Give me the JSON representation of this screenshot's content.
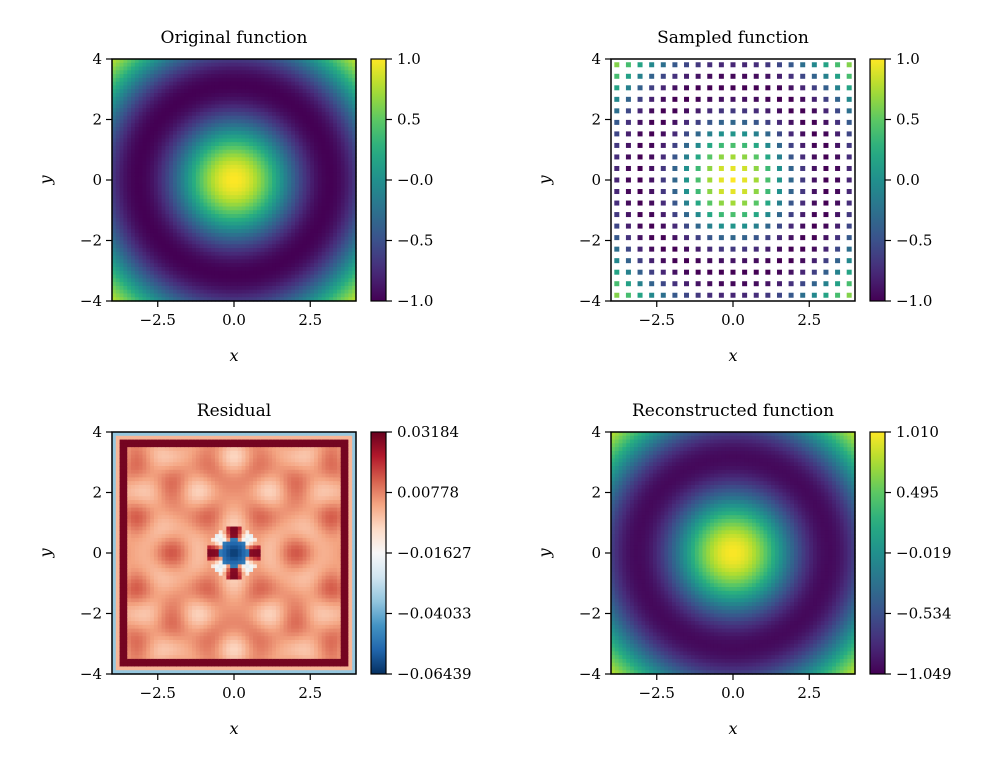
{
  "figure": {
    "panels": [
      {
        "id": "original",
        "title": "Original function",
        "xlabel": "x",
        "ylabel": "y",
        "colormap": "viridis",
        "kind": "smooth"
      },
      {
        "id": "sampled",
        "title": "Sampled function",
        "xlabel": "x",
        "ylabel": "y",
        "colormap": "viridis",
        "kind": "sampled"
      },
      {
        "id": "residual",
        "title": "Residual",
        "xlabel": "x",
        "ylabel": "y",
        "colormap": "RdBu_r",
        "kind": "residual"
      },
      {
        "id": "reconstructed",
        "title": "Reconstructed function",
        "xlabel": "x",
        "ylabel": "y",
        "colormap": "viridis",
        "kind": "smooth"
      }
    ]
  },
  "chart_data": [
    {
      "type": "heatmap",
      "title": "Original function",
      "xlabel": "x",
      "ylabel": "y",
      "xlim": [
        -4,
        4
      ],
      "ylim": [
        -4,
        4
      ],
      "xticks": [
        "−2.5",
        "0.0",
        "2.5"
      ],
      "xtick_values": [
        -2.5,
        0.0,
        2.5
      ],
      "yticks": [
        "−4",
        "−2",
        "0",
        "2",
        "4"
      ],
      "ytick_values": [
        -4,
        -2,
        0,
        2,
        4
      ],
      "function": "cos(sqrt(x^2 + y^2))",
      "colorbar": {
        "colormap": "viridis",
        "range": [
          -1.0,
          1.0
        ],
        "ticks": [
          "1.0",
          "0.5",
          "−0.0",
          "−0.5",
          "−1.0"
        ],
        "tick_values": [
          1.0,
          0.5,
          0.0,
          -0.5,
          -1.0
        ]
      }
    },
    {
      "type": "heatmap",
      "title": "Sampled function",
      "xlabel": "x",
      "ylabel": "y",
      "xlim": [
        -4,
        4
      ],
      "ylim": [
        -4,
        4
      ],
      "xticks": [
        "−2.5",
        "0.0",
        "2.5"
      ],
      "xtick_values": [
        -2.5,
        0.0,
        2.5
      ],
      "yticks": [
        "−4",
        "−2",
        "0",
        "2",
        "4"
      ],
      "ytick_values": [
        -4,
        -2,
        0,
        2,
        4
      ],
      "function": "cos(sqrt(x^2 + y^2)) sampled on a regular grid",
      "samples_per_axis": 21,
      "colorbar": {
        "colormap": "viridis",
        "range": [
          -1.0,
          1.0
        ],
        "ticks": [
          "1.0",
          "0.5",
          "0.0",
          "−0.5",
          "−1.0"
        ],
        "tick_values": [
          1.0,
          0.5,
          0.0,
          -0.5,
          -1.0
        ]
      }
    },
    {
      "type": "heatmap",
      "title": "Residual",
      "xlabel": "x",
      "ylabel": "y",
      "xlim": [
        -4,
        4
      ],
      "ylim": [
        -4,
        4
      ],
      "xticks": [
        "−2.5",
        "0.0",
        "2.5"
      ],
      "xtick_values": [
        -2.5,
        0.0,
        2.5
      ],
      "yticks": [
        "−4",
        "−2",
        "0",
        "2",
        "4"
      ],
      "ytick_values": [
        -4,
        -2,
        0,
        2,
        4
      ],
      "colorbar": {
        "colormap": "RdBu_r",
        "range": [
          -0.06439,
          0.03184
        ],
        "ticks": [
          "0.03184",
          "0.00778",
          "−0.01627",
          "−0.04033",
          "−0.06439"
        ],
        "tick_values": [
          0.03184,
          0.00778,
          -0.01627,
          -0.04033,
          -0.06439
        ]
      }
    },
    {
      "type": "heatmap",
      "title": "Reconstructed function",
      "xlabel": "x",
      "ylabel": "y",
      "xlim": [
        -4,
        4
      ],
      "ylim": [
        -4,
        4
      ],
      "xticks": [
        "−2.5",
        "0.0",
        "2.5"
      ],
      "xtick_values": [
        -2.5,
        0.0,
        2.5
      ],
      "yticks": [
        "−4",
        "−2",
        "0",
        "2",
        "4"
      ],
      "ytick_values": [
        -4,
        -2,
        0,
        2,
        4
      ],
      "function": "cos(sqrt(x^2 + y^2))",
      "colorbar": {
        "colormap": "viridis",
        "range": [
          -1.049,
          1.01
        ],
        "ticks": [
          "1.010",
          "0.495",
          "−0.019",
          "−0.534",
          "−1.049"
        ],
        "tick_values": [
          1.01,
          0.495,
          -0.019,
          -0.534,
          -1.049
        ]
      }
    }
  ]
}
